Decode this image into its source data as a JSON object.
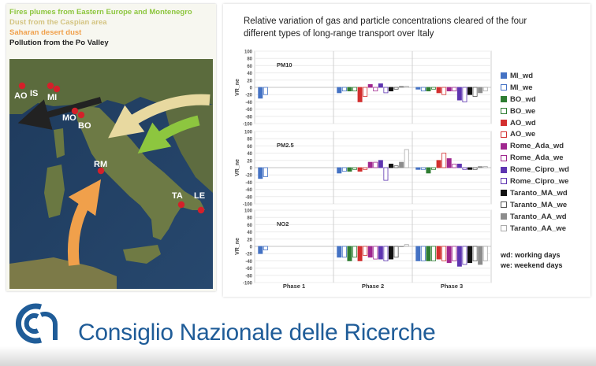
{
  "map": {
    "legend": [
      {
        "text": "Fires plumes from Eastern Europe and Montenegro",
        "color": "#8dc63f"
      },
      {
        "text": "Dust from the Caspian area",
        "color": "#e8d9a0"
      },
      {
        "text": "Saharan desert dust",
        "color": "#f0a04b"
      },
      {
        "text": "Pollution from the Po Valley",
        "color": "#222222"
      }
    ],
    "cities": [
      "AO",
      "IS",
      "MI",
      "MO",
      "BO",
      "RM",
      "TA",
      "LE"
    ],
    "arrow_colors": {
      "po_valley": "#222222",
      "caspian": "#e8d9a0",
      "fires": "#8dc63f",
      "sahara": "#f0a04b"
    }
  },
  "chart": {
    "title": "Relative variation of gas and particle concentrations cleared of the four different types of long-range transport over Italy"
  },
  "legend_notes": [
    "wd: working days",
    "we: weekend days"
  ],
  "footer": {
    "org": "Consiglio Nazionale delle Ricerche",
    "brand_color": "#1f5c98"
  },
  "chart_data": {
    "type": "bar",
    "categories": [
      "Phase 1",
      "Phase 2",
      "Phase 3"
    ],
    "ylabel": "VR_ne",
    "ylim": [
      -100,
      100
    ],
    "yticks": [
      100,
      80,
      60,
      40,
      20,
      0,
      -20,
      -40,
      -60,
      -80,
      -100
    ],
    "series_styles": [
      {
        "name": "MI_wd",
        "color": "#4472c4",
        "fill": "solid"
      },
      {
        "name": "MI_we",
        "color": "#4472c4",
        "fill": "hollow"
      },
      {
        "name": "BO_wd",
        "color": "#2e7d32",
        "fill": "solid"
      },
      {
        "name": "BO_we",
        "color": "#2e7d32",
        "fill": "hollow"
      },
      {
        "name": "AO_wd",
        "color": "#d32f2f",
        "fill": "solid"
      },
      {
        "name": "AO_we",
        "color": "#d32f2f",
        "fill": "hollow"
      },
      {
        "name": "Rome_Ada_wd",
        "color": "#a0278f",
        "fill": "solid"
      },
      {
        "name": "Rome_Ada_we",
        "color": "#a0278f",
        "fill": "hollow"
      },
      {
        "name": "Rome_Cipro_wd",
        "color": "#5e35b1",
        "fill": "solid"
      },
      {
        "name": "Rome_Cipro_we",
        "color": "#5e35b1",
        "fill": "hollow"
      },
      {
        "name": "Taranto_MA_wd",
        "color": "#111111",
        "fill": "solid"
      },
      {
        "name": "Taranto_MA_we",
        "color": "#555555",
        "fill": "hollow"
      },
      {
        "name": "Taranto_AA_wd",
        "color": "#8c8c8c",
        "fill": "solid"
      },
      {
        "name": "Taranto_AA_we",
        "color": "#aaaaaa",
        "fill": "hollow"
      }
    ],
    "panels": [
      {
        "name": "PM10",
        "values": [
          [
            -30,
            -20,
            null,
            null,
            null,
            null,
            null,
            null,
            null,
            null,
            null,
            null,
            null,
            null
          ],
          [
            -15,
            -10,
            -10,
            -10,
            -40,
            -25,
            8,
            -10,
            10,
            -15,
            -10,
            -5,
            3,
            3
          ],
          [
            -5,
            -10,
            -10,
            -5,
            -15,
            -20,
            -10,
            -10,
            -35,
            -40,
            -20,
            -25,
            -15,
            -10
          ]
        ]
      },
      {
        "name": "PM2.5",
        "values": [
          [
            -30,
            -25,
            null,
            null,
            null,
            null,
            null,
            null,
            null,
            null,
            null,
            null,
            null,
            null
          ],
          [
            -15,
            -10,
            -10,
            -5,
            -10,
            -5,
            15,
            15,
            20,
            -35,
            10,
            5,
            15,
            50
          ],
          [
            -5,
            -5,
            -15,
            -5,
            20,
            40,
            25,
            10,
            10,
            -5,
            -5,
            -5,
            3,
            3
          ]
        ]
      },
      {
        "name": "NO2",
        "values": [
          [
            -20,
            -10,
            null,
            null,
            null,
            null,
            null,
            null,
            null,
            null,
            null,
            null,
            null,
            null
          ],
          [
            -30,
            -30,
            -40,
            -30,
            -40,
            -25,
            -30,
            -35,
            -35,
            -40,
            -35,
            -30,
            0,
            5
          ],
          [
            -40,
            -40,
            -40,
            -40,
            -35,
            -40,
            -45,
            -40,
            -55,
            -50,
            -45,
            -40,
            -50,
            -40
          ]
        ]
      }
    ]
  }
}
